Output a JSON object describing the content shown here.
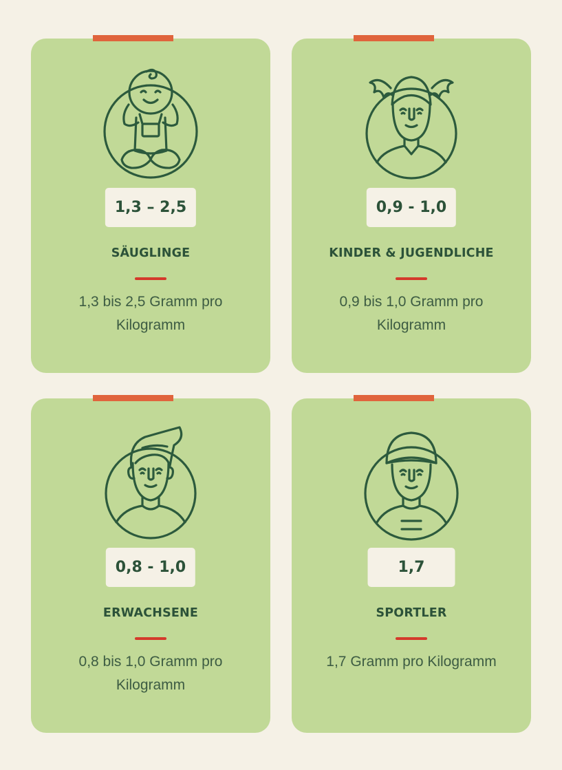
{
  "cards": [
    {
      "value": "1,3 – 2,5",
      "title": "SÄUGLINGE",
      "description": "1,3 bis 2,5 Gramm pro Kilogramm",
      "icon": "baby-icon"
    },
    {
      "value": "0,9 - 1,0",
      "title": "KINDER & JUGENDLICHE",
      "description": "0,9 bis 1,0 Gramm pro Kilogramm",
      "icon": "child-girl-icon"
    },
    {
      "value": "0,8 - 1,0",
      "title": "ERWACHSENE",
      "description": "0,8 bis 1,0 Gramm pro Kilogramm",
      "icon": "adult-man-icon"
    },
    {
      "value": "1,7",
      "title": "SPORTLER",
      "description": "1,7 Gramm pro Kilogramm",
      "icon": "athlete-cap-icon"
    }
  ],
  "colors": {
    "background": "#f5f1e6",
    "card": "#c1d997",
    "accent_bar": "#e0643c",
    "divider": "#d43a2b",
    "text_dark_green": "#2c5239",
    "badge_background": "#f5f1e6"
  }
}
